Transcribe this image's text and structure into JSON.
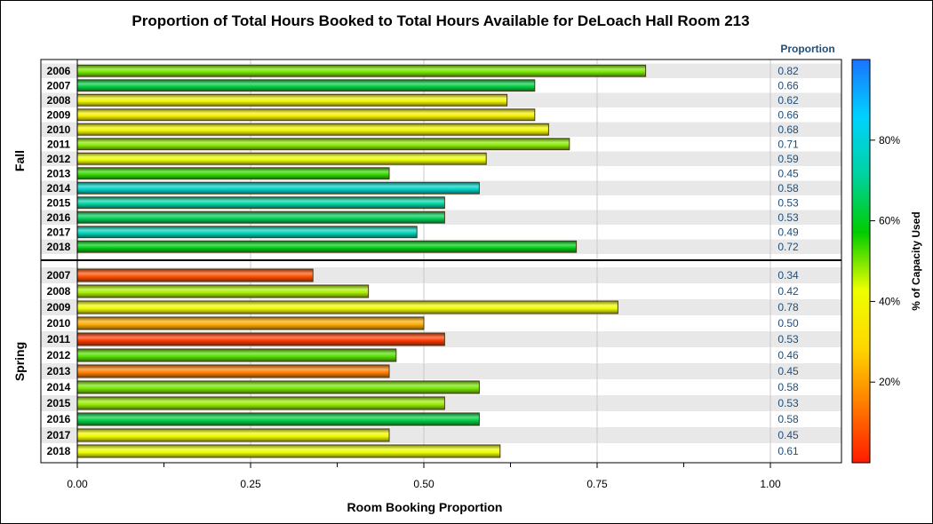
{
  "chart_data": {
    "type": "bar",
    "orientation": "horizontal",
    "title": "Proportion of Total Hours Booked to Total Hours Available for DeLoach Hall Room 213",
    "xlabel": "Room Booking Proportion",
    "xlim": [
      0,
      1.1
    ],
    "xticks": [
      "0.00",
      "0.25",
      "0.50",
      "0.75",
      "1.00"
    ],
    "xtick_values": [
      0,
      0.25,
      0.5,
      0.75,
      1.0
    ],
    "value_column_header": "Proportion",
    "colorbar": {
      "title": "% of Capacity Used",
      "ticks": [
        "20%",
        "40%",
        "60%",
        "80%"
      ],
      "tick_values": [
        20,
        40,
        60,
        80
      ],
      "range": [
        0,
        100
      ],
      "colors": [
        "#ff1a00",
        "#ff7b00",
        "#ffd700",
        "#eeff00",
        "#00cc00",
        "#00d2a0",
        "#00d2ff",
        "#1a73ff"
      ]
    },
    "groups": [
      {
        "name": "Fall",
        "categories": [
          "2006",
          "2007",
          "2008",
          "2009",
          "2010",
          "2011",
          "2012",
          "2013",
          "2014",
          "2015",
          "2016",
          "2017",
          "2018"
        ],
        "values": [
          0.82,
          0.66,
          0.62,
          0.66,
          0.68,
          0.71,
          0.59,
          0.45,
          0.58,
          0.53,
          0.53,
          0.49,
          0.72
        ],
        "labels": [
          "0.82",
          "0.66",
          "0.62",
          "0.66",
          "0.68",
          "0.71",
          "0.59",
          "0.45",
          "0.58",
          "0.53",
          "0.53",
          "0.49",
          "0.72"
        ],
        "capacity_pct": [
          50,
          63,
          40,
          38,
          40,
          49,
          43,
          54,
          77,
          72,
          65,
          75,
          59
        ]
      },
      {
        "name": "Spring",
        "categories": [
          "2007",
          "2008",
          "2009",
          "2010",
          "2011",
          "2012",
          "2013",
          "2014",
          "2015",
          "2016",
          "2017",
          "2018"
        ],
        "values": [
          0.34,
          0.42,
          0.78,
          0.5,
          0.53,
          0.46,
          0.45,
          0.58,
          0.53,
          0.58,
          0.45,
          0.61
        ],
        "labels": [
          "0.34",
          "0.42",
          "0.78",
          "0.50",
          "0.53",
          "0.46",
          "0.45",
          "0.58",
          "0.53",
          "0.58",
          "0.45",
          "0.61"
        ],
        "capacity_pct": [
          8,
          47,
          42,
          22,
          5,
          52,
          15,
          50,
          48,
          63,
          41,
          43
        ]
      }
    ]
  }
}
